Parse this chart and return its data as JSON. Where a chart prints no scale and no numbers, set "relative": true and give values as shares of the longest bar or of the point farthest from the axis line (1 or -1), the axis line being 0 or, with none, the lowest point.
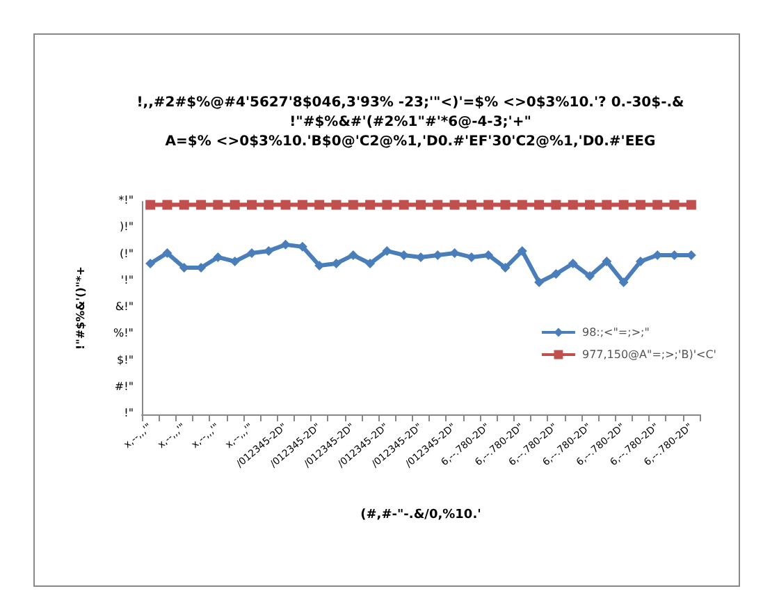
{
  "chart_data": {
    "type": "line",
    "title": "!,,#2#$%@#4'5627'8$046,3'93% -23;'\"<)'=$% <>0$3%10.'? 0.-30$-.&\n!\"#$%&#'(#2%1\"#'*6@-4-3;'+\"\nA=$% <>0$3%10.'B$0@'C2@%1,'D0.#'EF'30'C2@%1,'D0.#'EEG",
    "xlabel": "(#,#-\"-.&/0,%10.'",
    "ylabel": "!\"#$%&'()\"*+",
    "categories": [
      "x,--,,,'\"",
      null,
      "x,--,,,'\"",
      null,
      "x,--,,,'\"",
      null,
      "x,--,,,'\"",
      null,
      "/012345-2D\"",
      null,
      "/012345-2D\"",
      null,
      "/012345-2D\"",
      null,
      "/012345-2D\"",
      null,
      "/012345-2D\"",
      null,
      "/012345-2D\"",
      null,
      "6,--.780-2D\"",
      null,
      "6,--.780-2D\"",
      null,
      "6,--.780-2D\"",
      null,
      "6,--.780-2D\"",
      null,
      "6,--.780-2D\"",
      null,
      "6,--.780-2D\"",
      null,
      "6,--.780-2D\""
    ],
    "series": [
      {
        "name": "98:;<\"=;>;\"",
        "color": "#4a7ebb",
        "marker": "diamond",
        "values": [
          0.72,
          0.77,
          0.7,
          0.7,
          0.75,
          0.73,
          0.77,
          0.78,
          0.81,
          0.8,
          0.71,
          0.72,
          0.76,
          0.72,
          0.78,
          0.76,
          0.75,
          0.76,
          0.77,
          0.75,
          0.76,
          0.7,
          0.78,
          0.63,
          0.67,
          0.72,
          0.66,
          0.73,
          0.63,
          0.73,
          0.76,
          0.76,
          0.76
        ]
      },
      {
        "name": "977,150@A\"=;>;'B)'<C'",
        "color": "#c0504d",
        "marker": "square",
        "values": [
          1,
          1,
          1,
          1,
          1,
          1,
          1,
          1,
          1,
          1,
          1,
          1,
          1,
          1,
          1,
          1,
          1,
          1,
          1,
          1,
          1,
          1,
          1,
          1,
          1,
          1,
          1,
          1,
          1,
          1,
          1,
          1,
          1
        ]
      }
    ],
    "relative": true,
    "annotations": [
      "!\"",
      "#!\"",
      "$!\"",
      "%!\"",
      "&!\"",
      "'!\"",
      "(!\"",
      ")!\"",
      "*!\""
    ],
    "grid": false,
    "legend": "right"
  }
}
